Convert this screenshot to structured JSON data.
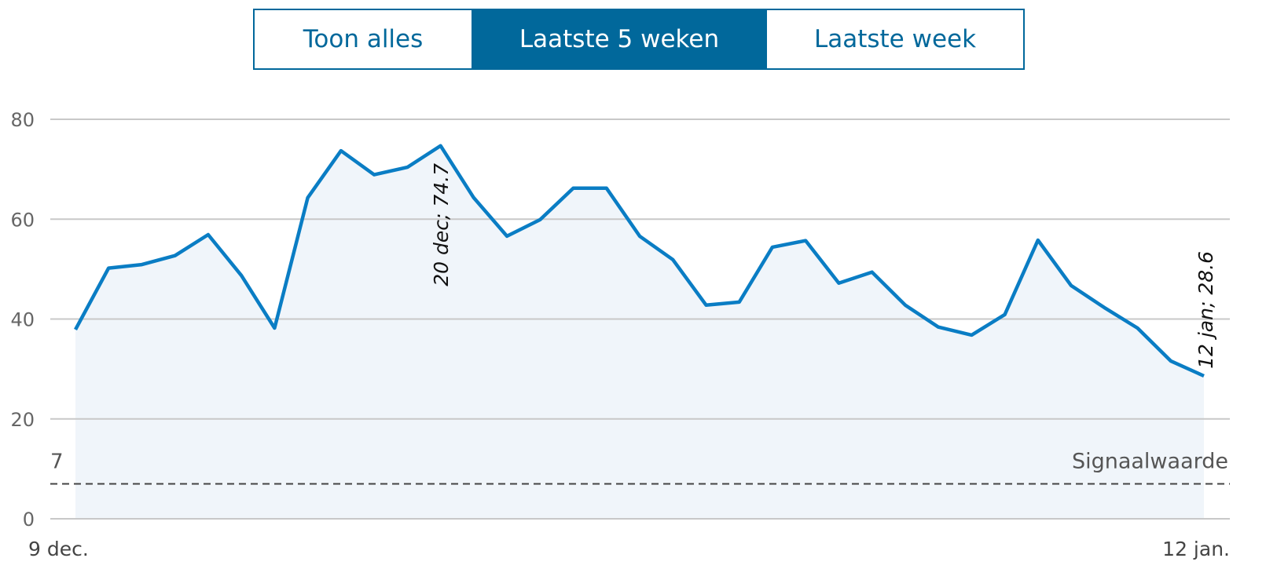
{
  "buttons": [
    {
      "label": "Toon alles"
    },
    {
      "label": "Laatste 5 weken"
    },
    {
      "label": "Laatste week"
    }
  ],
  "active_button": 1,
  "chart_data": {
    "type": "line",
    "categories": [
      "9 dec.",
      null,
      null,
      null,
      null,
      null,
      null,
      null,
      null,
      null,
      null,
      null,
      null,
      null,
      null,
      null,
      null,
      null,
      null,
      null,
      null,
      null,
      null,
      null,
      null,
      null,
      null,
      null,
      null,
      null,
      null,
      null,
      null,
      null,
      "12 jan."
    ],
    "series": [
      {
        "color": "#0a7dc4",
        "fill": "#f0f5fa",
        "values": [
          37.9,
          50.2,
          50.9,
          52.7,
          56.9,
          48.7,
          38.2,
          64.3,
          73.7,
          68.9,
          70.4,
          74.7,
          64.3,
          56.6,
          59.9,
          66.2,
          66.2,
          56.6,
          51.9,
          42.8,
          43.4,
          54.4,
          55.7,
          47.2,
          49.4,
          42.8,
          38.4,
          36.8,
          40.9,
          55.8,
          46.7,
          42.3,
          38.2,
          31.6,
          28.6
        ]
      }
    ],
    "ylim": [
      0,
      80
    ],
    "yticks": [
      0,
      20,
      40,
      60,
      80
    ],
    "grid": true,
    "reference_line": {
      "value": 7,
      "label": "Signaalwaarde"
    },
    "annotations": [
      "20 dec; 74.7",
      "12 jan; 28.6"
    ]
  }
}
